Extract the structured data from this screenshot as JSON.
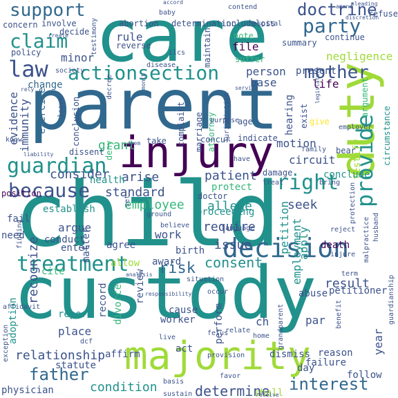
{
  "background": "#ffffff",
  "palette": {
    "purple": "#440154",
    "indigo": "#3b528b",
    "blue": "#31688e",
    "teal": "#21918c",
    "green": "#35b779",
    "lime": "#a0da39",
    "yellow": "#fde725"
  },
  "words": [
    {
      "text": "child",
      "color": "#21918c"
    },
    {
      "text": "care",
      "color": "#21918c"
    },
    {
      "text": "parent",
      "color": "#31688e"
    },
    {
      "text": "custody",
      "color": "#21918c"
    },
    {
      "text": "injury",
      "color": "#440154"
    },
    {
      "text": "majority",
      "color": "#a0da39"
    },
    {
      "text": "duty",
      "color": "#a0da39"
    },
    {
      "text": "decision",
      "color": "#31688e"
    },
    {
      "text": "treatment",
      "color": "#21918c"
    },
    {
      "text": "actionsection",
      "color": "#21918c"
    },
    {
      "text": "guardian",
      "color": "#21918c"
    },
    {
      "text": "right",
      "color": "#21918c"
    },
    {
      "text": "because",
      "color": "#3b528b"
    },
    {
      "text": "law",
      "color": "#3b528b"
    },
    {
      "text": "claim",
      "color": "#21918c"
    },
    {
      "text": "support",
      "color": "#31688e"
    },
    {
      "text": "party",
      "color": "#31688e"
    },
    {
      "text": "mother",
      "color": "#3b528b"
    },
    {
      "text": "doctrine",
      "color": "#3b528b"
    },
    {
      "text": "provide",
      "color": "#21918c"
    },
    {
      "text": "father",
      "color": "#31688e"
    },
    {
      "text": "interest",
      "color": "#31688e"
    },
    {
      "text": "determine",
      "color": "#3b528b"
    },
    {
      "text": "condition",
      "color": "#21918c"
    },
    {
      "text": "relationship",
      "color": "#3b528b"
    },
    {
      "text": "result",
      "color": "#3b528b"
    },
    {
      "text": "risk",
      "color": "#31688e"
    },
    {
      "text": "consent",
      "color": "#21918c"
    },
    {
      "text": "issue",
      "color": "#3b528b"
    },
    {
      "text": "allege",
      "color": "#21918c"
    },
    {
      "text": "require",
      "color": "#3b528b"
    },
    {
      "text": "standard",
      "color": "#3b528b"
    },
    {
      "text": "employee",
      "color": "#35b779"
    },
    {
      "text": "patient",
      "color": "#3b528b"
    },
    {
      "text": "consider",
      "color": "#3b528b"
    },
    {
      "text": "grant",
      "color": "#35b779"
    },
    {
      "text": "arise",
      "color": "#3b528b"
    },
    {
      "text": "seek",
      "color": "#3b528b"
    },
    {
      "text": "circuit",
      "color": "#3b528b"
    },
    {
      "text": "motion",
      "color": "#3b528b"
    },
    {
      "text": "person",
      "color": "#3b528b"
    },
    {
      "text": "base",
      "color": "#3b528b"
    },
    {
      "text": "file",
      "color": "#440154"
    },
    {
      "text": "life",
      "color": "#440154"
    },
    {
      "text": "rule",
      "color": "#3b528b"
    },
    {
      "text": "minor",
      "color": "#3b528b"
    },
    {
      "text": "recognize",
      "color": "#3b528b"
    },
    {
      "text": "work",
      "color": "#3b528b"
    },
    {
      "text": "award",
      "color": "#3b528b"
    },
    {
      "text": "agree",
      "color": "#3b528b"
    },
    {
      "text": "argue",
      "color": "#3b528b"
    },
    {
      "text": "enter",
      "color": "#3b528b"
    },
    {
      "text": "matter",
      "color": "#3b528b"
    },
    {
      "text": "apply",
      "color": "#21918c"
    },
    {
      "text": "petition",
      "color": "#21918c"
    },
    {
      "text": "death",
      "color": "#440154"
    },
    {
      "text": "abuse",
      "color": "#3b528b"
    },
    {
      "text": "year",
      "color": "#3b528b"
    },
    {
      "text": "employment",
      "color": "#21918c"
    },
    {
      "text": "negligence",
      "color": "#a0da39"
    },
    {
      "text": "evidence",
      "color": "#3b528b"
    },
    {
      "text": "immunity",
      "color": "#3b528b"
    },
    {
      "text": "exercise",
      "color": "#31688e"
    },
    {
      "text": "change",
      "color": "#31688e"
    },
    {
      "text": "present",
      "color": "#3b528b"
    },
    {
      "text": "hearing",
      "color": "#3b528b"
    },
    {
      "text": "circumstance",
      "color": "#21918c"
    },
    {
      "text": "testify",
      "color": "#a0da39"
    },
    {
      "text": "conclude",
      "color": "#21918c"
    },
    {
      "text": "damage",
      "color": "#3b528b"
    },
    {
      "text": "protect",
      "color": "#35b779"
    },
    {
      "text": "doctor",
      "color": "#3b528b"
    },
    {
      "text": "proceeding",
      "color": "#21918c"
    },
    {
      "text": "birth",
      "color": "#3b528b"
    },
    {
      "text": "allow",
      "color": "#a0da39"
    },
    {
      "text": "cite",
      "color": "#35b779"
    },
    {
      "text": "fail",
      "color": "#3b528b"
    },
    {
      "text": "need",
      "color": "#3b528b"
    },
    {
      "text": "conduct",
      "color": "#3b528b"
    },
    {
      "text": "establish",
      "color": "#21918c"
    },
    {
      "text": "position",
      "color": "#440154"
    },
    {
      "text": "health",
      "color": "#21918c"
    },
    {
      "text": "report",
      "color": "#21918c"
    },
    {
      "text": "place",
      "color": "#3b528b"
    },
    {
      "text": "adoption",
      "color": "#21918c"
    },
    {
      "text": "worker",
      "color": "#3b528b"
    },
    {
      "text": "cause",
      "color": "#3b528b"
    },
    {
      "text": "record",
      "color": "#3b528b"
    },
    {
      "text": "divorce",
      "color": "#35b779"
    },
    {
      "text": "review",
      "color": "#3b528b"
    },
    {
      "text": "act",
      "color": "#3b528b"
    },
    {
      "text": "ch",
      "color": "#3b528b"
    },
    {
      "text": "par",
      "color": "#3b528b"
    },
    {
      "text": "perform",
      "color": "#3b528b"
    },
    {
      "text": "dismiss",
      "color": "#3b528b"
    },
    {
      "text": "reason",
      "color": "#3b528b"
    },
    {
      "text": "failure",
      "color": "#3b528b"
    },
    {
      "text": "day",
      "color": "#3b528b"
    },
    {
      "text": "follow",
      "color": "#3b528b"
    },
    {
      "text": "petitioner",
      "color": "#3b528b"
    },
    {
      "text": "affirm",
      "color": "#3b528b"
    },
    {
      "text": "statute",
      "color": "#3b528b"
    },
    {
      "text": "physician",
      "color": "#3b528b"
    },
    {
      "text": "shall",
      "color": "#a0da39"
    },
    {
      "text": "involve",
      "color": "#3b528b"
    },
    {
      "text": "decide",
      "color": "#3b528b"
    },
    {
      "text": "concern",
      "color": "#3b528b"
    },
    {
      "text": "policy",
      "color": "#3b528b"
    },
    {
      "text": "abortion",
      "color": "#3b528b"
    },
    {
      "text": "reverse",
      "color": "#3b528b"
    },
    {
      "text": "determination",
      "color": "#3b528b"
    },
    {
      "text": "include",
      "color": "#3b528b"
    },
    {
      "text": "loss",
      "color": "#3b528b"
    },
    {
      "text": "contend",
      "color": "#3b528b"
    },
    {
      "text": "note",
      "color": "#35b779"
    },
    {
      "text": "maintain",
      "color": "#3b528b"
    },
    {
      "text": "suffer",
      "color": "#35b779"
    },
    {
      "text": "summary",
      "color": "#3b528b"
    },
    {
      "text": "continue",
      "color": "#3b528b"
    },
    {
      "text": "hospital",
      "color": "#3b528b"
    },
    {
      "text": "argument",
      "color": "#35b779"
    },
    {
      "text": "exist",
      "color": "#3b528b"
    },
    {
      "text": "give",
      "color": "#fde725"
    },
    {
      "text": "employer",
      "color": "#3b528b"
    },
    {
      "text": "bear",
      "color": "#3b528b"
    },
    {
      "text": "marriage",
      "color": "#3b528b"
    },
    {
      "text": "attorney",
      "color": "#35b779"
    },
    {
      "text": "complaint",
      "color": "#3b528b"
    },
    {
      "text": "conclusion",
      "color": "#3b528b"
    },
    {
      "text": "indicate",
      "color": "#3b528b"
    },
    {
      "text": "age",
      "color": "#3b528b"
    },
    {
      "text": "deny",
      "color": "#35b779"
    },
    {
      "text": "malpractice",
      "color": "#3b528b"
    },
    {
      "text": "husband",
      "color": "#3b528b"
    },
    {
      "text": "jurisdiction",
      "color": "#3b528b"
    },
    {
      "text": "take",
      "color": "#3b528b"
    },
    {
      "text": "concur",
      "color": "#3b528b"
    },
    {
      "text": "purpose",
      "color": "#3b528b"
    },
    {
      "text": "dissent",
      "color": "#3b528b"
    },
    {
      "text": "disease",
      "color": "#3b528b"
    },
    {
      "text": "leave",
      "color": "#3b528b"
    },
    {
      "text": "decree",
      "color": "#3b528b"
    },
    {
      "text": "society",
      "color": "#3b528b"
    },
    {
      "text": "testimony",
      "color": "#3b528b"
    },
    {
      "text": "baby",
      "color": "#3b528b"
    },
    {
      "text": "refuse",
      "color": "#3b528b"
    },
    {
      "text": "discretion",
      "color": "#3b528b"
    },
    {
      "text": "create",
      "color": "#3b528b"
    },
    {
      "text": "ilcs",
      "color": "#3b528b"
    },
    {
      "text": "relate",
      "color": "#3b528b"
    },
    {
      "text": "home",
      "color": "#3b528b"
    },
    {
      "text": "grandparent",
      "color": "#3b528b"
    },
    {
      "text": "benefit",
      "color": "#3b528b"
    },
    {
      "text": "guardianship",
      "color": "#3b528b"
    },
    {
      "text": "fetus",
      "color": "#3b528b"
    },
    {
      "text": "provision",
      "color": "#3b528b"
    },
    {
      "text": "live",
      "color": "#3b528b"
    },
    {
      "text": "dcf",
      "color": "#3b528b"
    },
    {
      "text": "favor",
      "color": "#3b528b"
    },
    {
      "text": "basis",
      "color": "#3b528b"
    },
    {
      "text": "sustain",
      "color": "#3b528b"
    },
    {
      "text": "receive",
      "color": "#3b528b"
    },
    {
      "text": "situation",
      "color": "#3b528b"
    },
    {
      "text": "occur",
      "color": "#3b528b"
    },
    {
      "text": "responsibility",
      "color": "#3b528b"
    },
    {
      "text": "analysis",
      "color": "#3b528b"
    },
    {
      "text": "affidavit",
      "color": "#3b528b"
    },
    {
      "text": "finding",
      "color": "#3b528b"
    },
    {
      "text": "reject",
      "color": "#3b528b"
    },
    {
      "text": "protection",
      "color": "#3b528b"
    },
    {
      "text": "injure",
      "color": "#3b528b"
    },
    {
      "text": "term",
      "color": "#3b528b"
    },
    {
      "text": "language",
      "color": "#3b528b"
    },
    {
      "text": "believe",
      "color": "#3b528b"
    },
    {
      "text": "ground",
      "color": "#3b528b"
    },
    {
      "text": "set",
      "color": "#3b528b"
    },
    {
      "text": "know",
      "color": "#3b528b"
    },
    {
      "text": "liability",
      "color": "#3b528b"
    },
    {
      "text": "family",
      "color": "#3b528b"
    },
    {
      "text": "bring",
      "color": "#3b528b"
    },
    {
      "text": "treat",
      "color": "#3b528b"
    },
    {
      "text": "have",
      "color": "#3b528b"
    },
    {
      "text": "deem",
      "color": "#3b528b"
    },
    {
      "text": "legislature",
      "color": "#3b528b"
    },
    {
      "text": "month",
      "color": "#3b528b"
    },
    {
      "text": "service",
      "color": "#3b528b"
    },
    {
      "text": "rely",
      "color": "#3b528b"
    },
    {
      "text": "exception",
      "color": "#3b528b"
    },
    {
      "text": "amend",
      "color": "#3b528b"
    },
    {
      "text": "pleading",
      "color": "#3b528b"
    },
    {
      "text": "accord",
      "color": "#3b528b"
    }
  ]
}
